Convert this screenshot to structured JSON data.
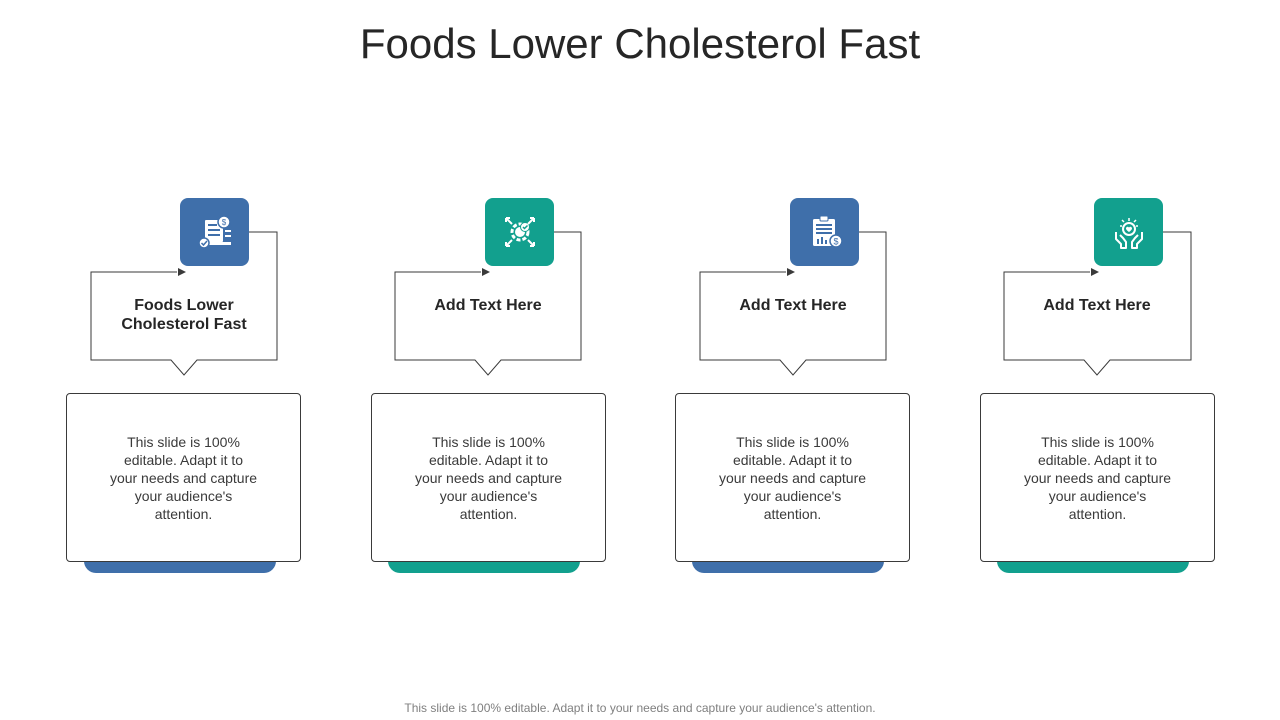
{
  "slide": {
    "title": "Foods Lower Cholesterol Fast",
    "footer": "This slide is 100% editable. Adapt it to your needs and capture your audience's attention."
  },
  "colors": {
    "blue": "#3f6faa",
    "teal": "#12a08e",
    "outline": "#3a3a3a"
  },
  "steps": [
    {
      "heading": "Foods Lower Cholesterol Fast",
      "icon": "document-dollar-check-icon",
      "accent": "#3f6faa",
      "description": "This slide is 100% editable. Adapt it to your needs and capture your audience's attention."
    },
    {
      "heading": "Add Text Here",
      "icon": "gear-checkmark-arrows-icon",
      "accent": "#12a08e",
      "description": "This slide is 100% editable. Adapt it to your needs and capture your audience's attention."
    },
    {
      "heading": "Add Text Here",
      "icon": "clipboard-chart-dollar-icon",
      "accent": "#3f6faa",
      "description": "This slide is 100% editable. Adapt it to your needs and capture your audience's attention."
    },
    {
      "heading": "Add Text Here",
      "icon": "hands-heart-icon",
      "accent": "#12a08e",
      "description": "This slide is 100% editable. Adapt it to your needs and capture your audience's attention."
    }
  ]
}
